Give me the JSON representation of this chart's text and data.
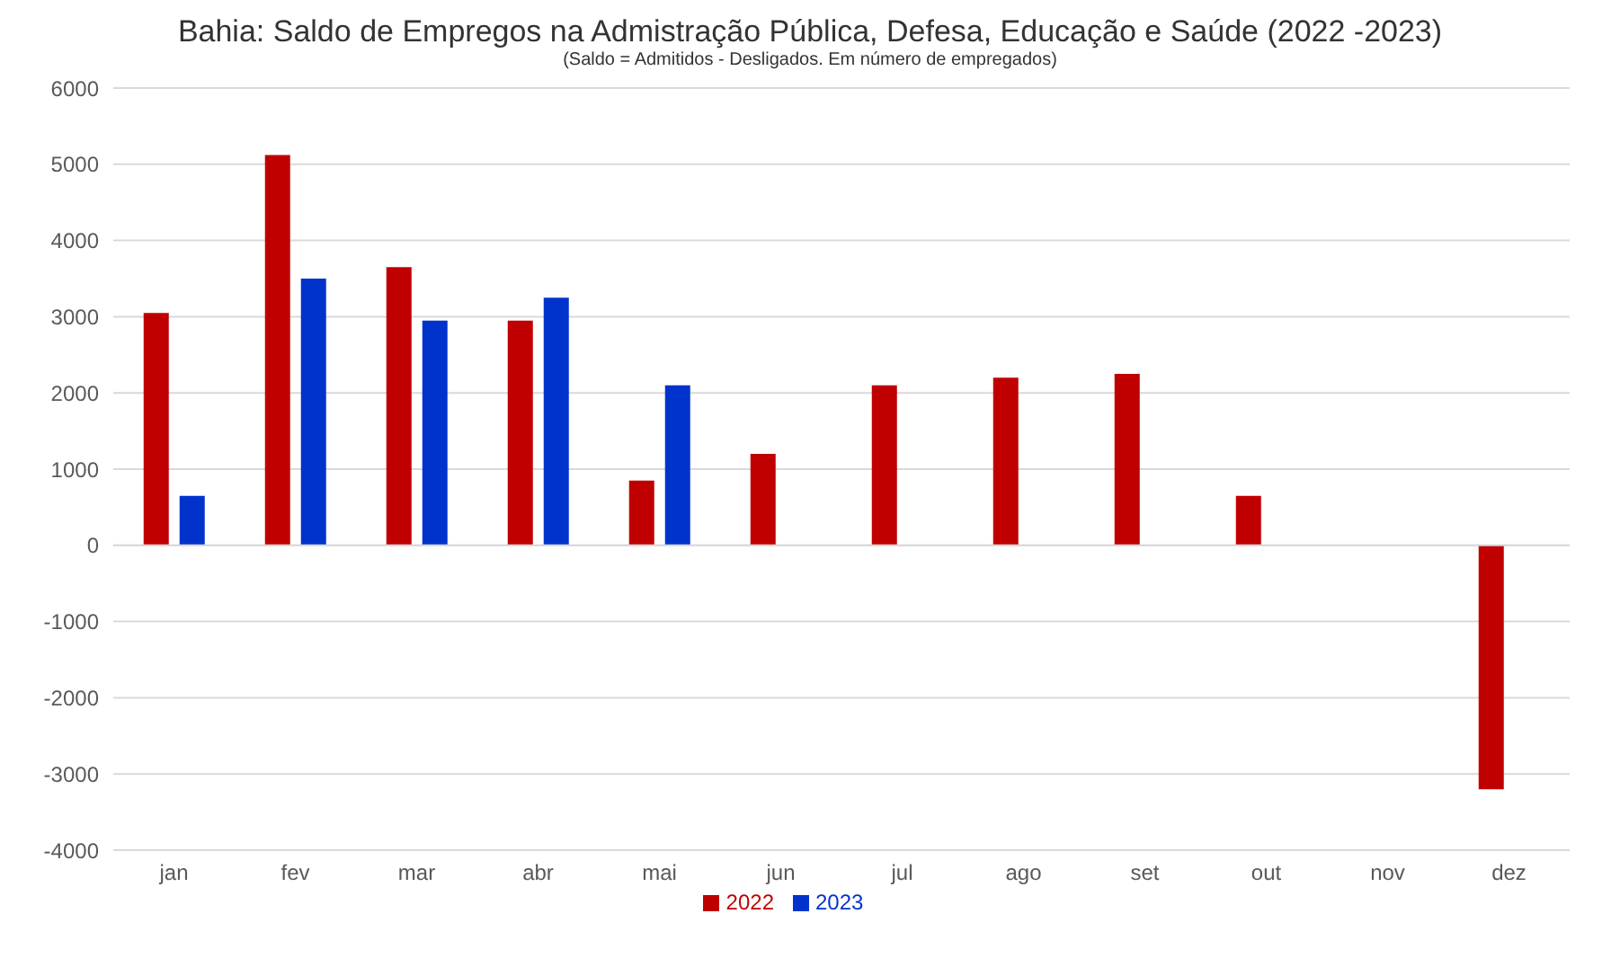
{
  "chart_data": {
    "type": "bar",
    "title": "Bahia: Saldo de Empregos na Admistração Pública, Defesa, Educação e Saúde (2022 -2023)",
    "subtitle": "(Saldo = Admitidos - Desligados. Em número de empregados)",
    "categories": [
      "jan",
      "fev",
      "mar",
      "abr",
      "mai",
      "jun",
      "jul",
      "ago",
      "set",
      "out",
      "nov",
      "dez"
    ],
    "series": [
      {
        "name": "2022",
        "color": "#c00000",
        "values": [
          3050,
          5120,
          3650,
          2950,
          850,
          1200,
          2100,
          2200,
          2250,
          650,
          null,
          -3200
        ]
      },
      {
        "name": "2023",
        "color": "#0033cc",
        "values": [
          650,
          3500,
          2950,
          3250,
          2100,
          null,
          null,
          null,
          null,
          null,
          null,
          null
        ]
      }
    ],
    "ylim": [
      -4000,
      6000
    ],
    "yticks": [
      -4000,
      -3000,
      -2000,
      -1000,
      0,
      1000,
      2000,
      3000,
      4000,
      5000,
      6000
    ],
    "grid": "y",
    "legend": "bottom"
  }
}
